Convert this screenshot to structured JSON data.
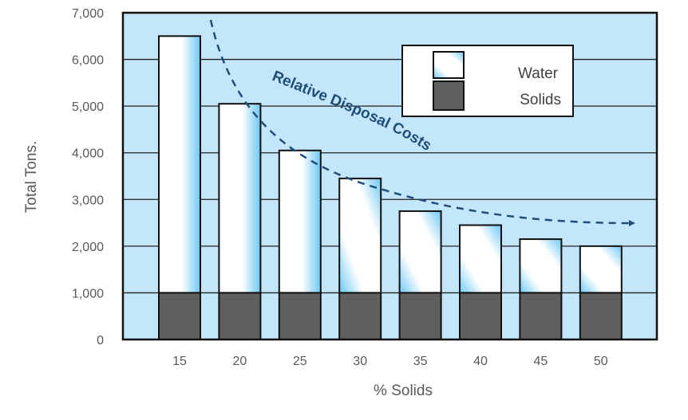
{
  "chart_data": {
    "type": "bar",
    "stacked": true,
    "xlabel": "% Solids",
    "ylabel": "Total Tons.",
    "categories": [
      "15",
      "20",
      "25",
      "30",
      "35",
      "40",
      "45",
      "50"
    ],
    "series": [
      {
        "name": "Solids",
        "values": [
          1000,
          1000,
          1000,
          1000,
          1000,
          1000,
          1000,
          1000
        ],
        "color": "#5f5f5f"
      },
      {
        "name": "Water",
        "values": [
          5500,
          4050,
          3050,
          2450,
          1750,
          1450,
          1150,
          1000
        ],
        "color": "#7fd0f7"
      }
    ],
    "ylim": [
      0,
      7000
    ],
    "yticks": [
      "0",
      "1,000",
      "2,000",
      "3,000",
      "4,000",
      "5,000",
      "6,000",
      "7,000"
    ],
    "grid": true,
    "legend": "top-right",
    "annotation": "Relative Disposal Costs",
    "plot_background": "#c3e6fb",
    "annotation_color": "#1f4e79"
  }
}
